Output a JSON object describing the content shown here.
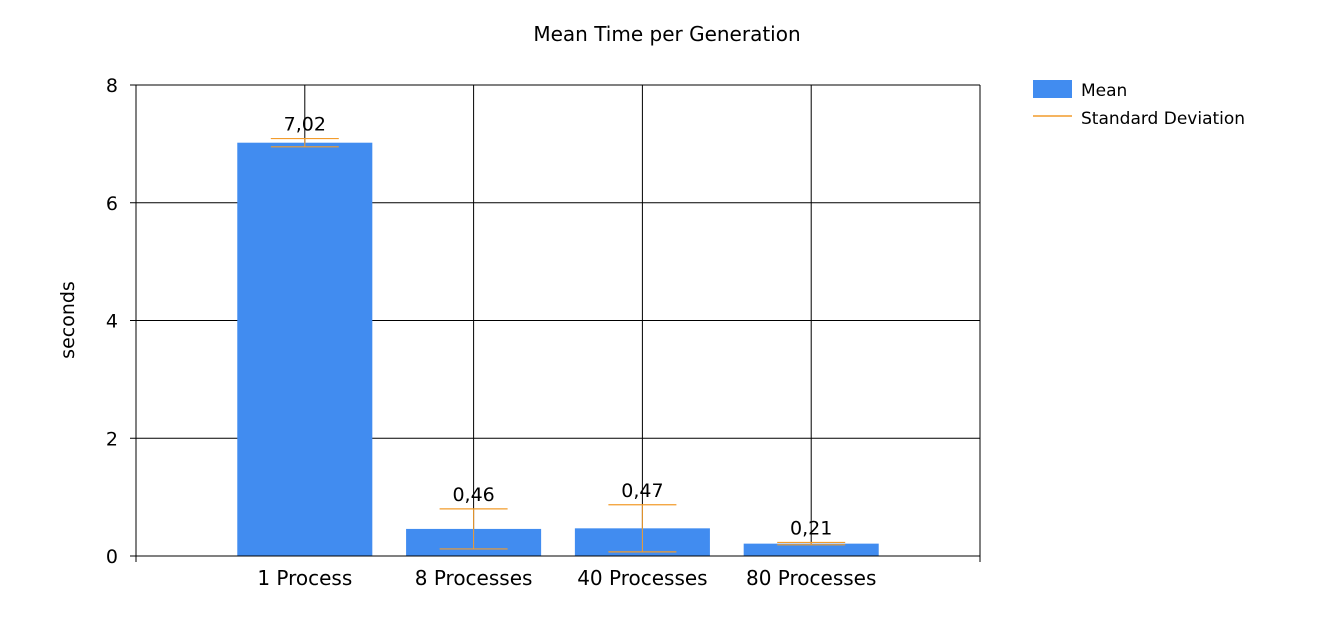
{
  "chart_data": {
    "type": "bar",
    "title": "Mean Time per Generation",
    "xlabel": "",
    "ylabel": "seconds",
    "categories": [
      "1 Process",
      "8 Processes",
      "40 Processes",
      "80 Processes"
    ],
    "series": [
      {
        "name": "Mean",
        "values": [
          7.02,
          0.46,
          0.47,
          0.21
        ],
        "data_labels": [
          "7,02",
          "0,46",
          "0,47",
          "0,21"
        ]
      }
    ],
    "std_dev": {
      "name": "Standard Deviation",
      "values": [
        0.07,
        0.34,
        0.4,
        0.02
      ]
    },
    "ylim": [
      0,
      8
    ],
    "yticks": [
      "0",
      "2",
      "4",
      "6",
      "8"
    ],
    "grid": true,
    "legend_position": "top-right",
    "colors": {
      "bar": "#418cf0",
      "error": "#f29c2c",
      "grid": "#000000"
    }
  }
}
